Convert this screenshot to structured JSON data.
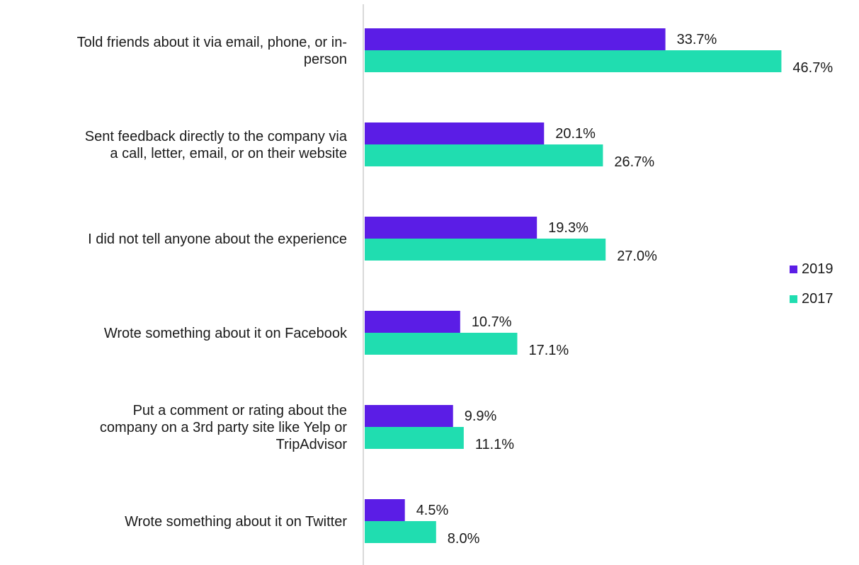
{
  "chart_data": {
    "type": "bar",
    "orientation": "horizontal",
    "categories": [
      "Told friends about it via email, phone, or in-person",
      "Sent feedback directly to the company via a call, letter, email, or on their website",
      "I did not tell anyone about the experience",
      "Wrote something about it on Facebook",
      "Put a comment or rating about the company on a 3rd party site like Yelp or TripAdvisor",
      "Wrote something about it on Twitter"
    ],
    "category_lines": [
      [
        "Told friends about it via email, phone, or in-",
        "person"
      ],
      [
        "Sent feedback directly to the company via",
        "a call, letter, email, or on their website"
      ],
      [
        "I did not tell anyone about the experience"
      ],
      [
        "Wrote something about it on Facebook"
      ],
      [
        "Put a comment or rating about the",
        "company on a 3rd party site like Yelp or",
        "TripAdvisor"
      ],
      [
        "Wrote something about it on Twitter"
      ]
    ],
    "series": [
      {
        "name": "2019",
        "color": "#5b1de6",
        "values": [
          33.7,
          20.1,
          19.3,
          10.7,
          9.9,
          4.5
        ],
        "labels": [
          "33.7%",
          "20.1%",
          "19.3%",
          "10.7%",
          "9.9%",
          "4.5%"
        ]
      },
      {
        "name": "2017",
        "color": "#20ddb0",
        "values": [
          46.7,
          26.7,
          27.0,
          17.1,
          11.1,
          8.0
        ],
        "labels": [
          "46.7%",
          "26.7%",
          "27.0%",
          "17.1%",
          "11.1%",
          "8.0%"
        ]
      }
    ],
    "xlim": [
      0,
      50
    ],
    "grid": false,
    "legend_position": "right"
  },
  "legend": {
    "items": [
      {
        "label": "2019",
        "color": "#5b1de6"
      },
      {
        "label": "2017",
        "color": "#20ddb0"
      }
    ]
  }
}
